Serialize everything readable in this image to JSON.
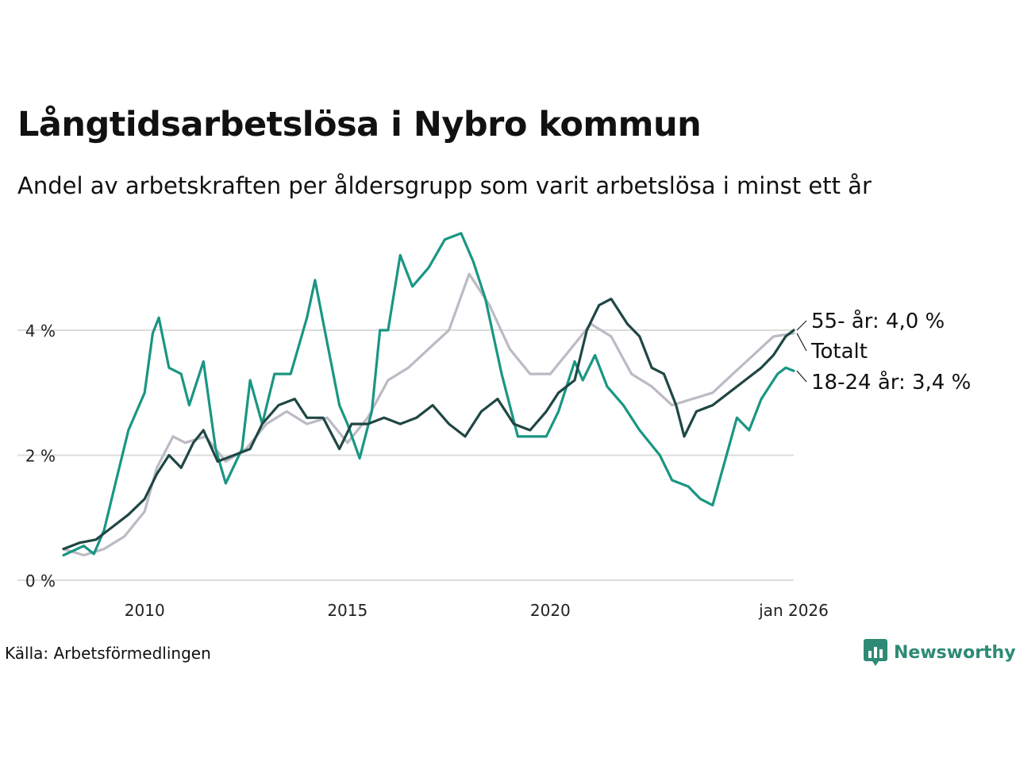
{
  "header": {
    "title": "Långtidsarbetslösa i Nybro kommun",
    "subtitle": "Andel av arbetskraften per åldersgrupp som varit arbetslösa i minst ett år"
  },
  "footer": {
    "source": "Källa: Arbetsförmedlingen",
    "brand": "Newsworthy"
  },
  "colors": {
    "youth": "#1a9683",
    "older": "#1f4744",
    "total": "#bcbac4",
    "grid": "#dcdcdc",
    "brand": "#2e8a74"
  },
  "chart_data": {
    "type": "line",
    "title": "Långtidsarbetslösa i Nybro kommun",
    "xlabel": "",
    "ylabel": "",
    "xlim": [
      2008.0,
      2026.0
    ],
    "ylim": [
      0,
      5.6
    ],
    "x_ticks": [
      {
        "value": 2010,
        "label": "2010"
      },
      {
        "value": 2015,
        "label": "2015"
      },
      {
        "value": 2020,
        "label": "2020"
      },
      {
        "value": 2026.0,
        "label": "jan 2026"
      }
    ],
    "y_ticks": [
      {
        "value": 0,
        "label": "0 %"
      },
      {
        "value": 2,
        "label": "2 %"
      },
      {
        "value": 4,
        "label": "4 %"
      }
    ],
    "grid": true,
    "series": [
      {
        "name": "Totalt",
        "label": "Totalt",
        "color": "#bcbac4",
        "points": [
          [
            2008.0,
            0.5
          ],
          [
            2008.5,
            0.4
          ],
          [
            2009.0,
            0.5
          ],
          [
            2009.5,
            0.7
          ],
          [
            2010.0,
            1.1
          ],
          [
            2010.3,
            1.8
          ],
          [
            2010.7,
            2.3
          ],
          [
            2011.0,
            2.2
          ],
          [
            2011.5,
            2.3
          ],
          [
            2012.0,
            1.9
          ],
          [
            2012.5,
            2.1
          ],
          [
            2013.0,
            2.5
          ],
          [
            2013.5,
            2.7
          ],
          [
            2014.0,
            2.5
          ],
          [
            2014.5,
            2.6
          ],
          [
            2015.0,
            2.2
          ],
          [
            2015.5,
            2.6
          ],
          [
            2016.0,
            3.2
          ],
          [
            2016.5,
            3.4
          ],
          [
            2017.0,
            3.7
          ],
          [
            2017.5,
            4.0
          ],
          [
            2018.0,
            4.9
          ],
          [
            2018.5,
            4.4
          ],
          [
            2019.0,
            3.7
          ],
          [
            2019.5,
            3.3
          ],
          [
            2020.0,
            3.3
          ],
          [
            2020.5,
            3.7
          ],
          [
            2021.0,
            4.1
          ],
          [
            2021.5,
            3.9
          ],
          [
            2022.0,
            3.3
          ],
          [
            2022.5,
            3.1
          ],
          [
            2023.0,
            2.8
          ],
          [
            2023.5,
            2.9
          ],
          [
            2024.0,
            3.0
          ],
          [
            2024.5,
            3.3
          ],
          [
            2025.0,
            3.6
          ],
          [
            2025.5,
            3.9
          ],
          [
            2026.0,
            3.95
          ]
        ]
      },
      {
        "name": "18-24 år",
        "label": "18-24 år: 3,4 %",
        "color": "#1a9683",
        "points": [
          [
            2008.0,
            0.4
          ],
          [
            2008.5,
            0.55
          ],
          [
            2008.75,
            0.42
          ],
          [
            2009.0,
            0.8
          ],
          [
            2009.3,
            1.6
          ],
          [
            2009.6,
            2.4
          ],
          [
            2010.0,
            3.0
          ],
          [
            2010.2,
            3.95
          ],
          [
            2010.35,
            4.2
          ],
          [
            2010.6,
            3.4
          ],
          [
            2010.9,
            3.3
          ],
          [
            2011.1,
            2.8
          ],
          [
            2011.45,
            3.5
          ],
          [
            2011.75,
            2.1
          ],
          [
            2012.0,
            1.55
          ],
          [
            2012.4,
            2.1
          ],
          [
            2012.6,
            3.2
          ],
          [
            2012.9,
            2.5
          ],
          [
            2013.2,
            3.3
          ],
          [
            2013.6,
            3.3
          ],
          [
            2014.0,
            4.2
          ],
          [
            2014.2,
            4.8
          ],
          [
            2014.5,
            3.8
          ],
          [
            2014.8,
            2.8
          ],
          [
            2015.0,
            2.5
          ],
          [
            2015.3,
            1.95
          ],
          [
            2015.6,
            2.7
          ],
          [
            2015.8,
            4.0
          ],
          [
            2016.0,
            4.0
          ],
          [
            2016.3,
            5.2
          ],
          [
            2016.6,
            4.7
          ],
          [
            2017.0,
            5.0
          ],
          [
            2017.4,
            5.45
          ],
          [
            2017.8,
            5.55
          ],
          [
            2018.1,
            5.1
          ],
          [
            2018.4,
            4.5
          ],
          [
            2018.8,
            3.3
          ],
          [
            2019.2,
            2.3
          ],
          [
            2019.5,
            2.3
          ],
          [
            2019.9,
            2.3
          ],
          [
            2020.2,
            2.7
          ],
          [
            2020.6,
            3.5
          ],
          [
            2020.8,
            3.2
          ],
          [
            2021.1,
            3.6
          ],
          [
            2021.4,
            3.1
          ],
          [
            2021.8,
            2.8
          ],
          [
            2022.2,
            2.4
          ],
          [
            2022.7,
            2.0
          ],
          [
            2023.0,
            1.6
          ],
          [
            2023.4,
            1.5
          ],
          [
            2023.7,
            1.3
          ],
          [
            2024.0,
            1.2
          ],
          [
            2024.3,
            1.9
          ],
          [
            2024.6,
            2.6
          ],
          [
            2024.9,
            2.4
          ],
          [
            2025.2,
            2.9
          ],
          [
            2025.6,
            3.3
          ],
          [
            2025.8,
            3.4
          ],
          [
            2026.0,
            3.35
          ]
        ]
      },
      {
        "name": "55- år",
        "label": "55- år: 4,0 %",
        "color": "#1f4744",
        "points": [
          [
            2008.0,
            0.5
          ],
          [
            2008.4,
            0.6
          ],
          [
            2008.8,
            0.65
          ],
          [
            2009.2,
            0.85
          ],
          [
            2009.6,
            1.05
          ],
          [
            2010.0,
            1.3
          ],
          [
            2010.3,
            1.7
          ],
          [
            2010.6,
            2.0
          ],
          [
            2010.9,
            1.8
          ],
          [
            2011.2,
            2.2
          ],
          [
            2011.45,
            2.4
          ],
          [
            2011.8,
            1.9
          ],
          [
            2012.2,
            2.0
          ],
          [
            2012.6,
            2.1
          ],
          [
            2012.9,
            2.5
          ],
          [
            2013.3,
            2.8
          ],
          [
            2013.7,
            2.9
          ],
          [
            2014.0,
            2.6
          ],
          [
            2014.4,
            2.6
          ],
          [
            2014.8,
            2.1
          ],
          [
            2015.1,
            2.5
          ],
          [
            2015.5,
            2.5
          ],
          [
            2015.9,
            2.6
          ],
          [
            2016.3,
            2.5
          ],
          [
            2016.7,
            2.6
          ],
          [
            2017.1,
            2.8
          ],
          [
            2017.5,
            2.5
          ],
          [
            2017.9,
            2.3
          ],
          [
            2018.3,
            2.7
          ],
          [
            2018.7,
            2.9
          ],
          [
            2019.1,
            2.5
          ],
          [
            2019.5,
            2.4
          ],
          [
            2019.9,
            2.7
          ],
          [
            2020.2,
            3.0
          ],
          [
            2020.6,
            3.2
          ],
          [
            2020.9,
            4.0
          ],
          [
            2021.2,
            4.4
          ],
          [
            2021.5,
            4.5
          ],
          [
            2021.9,
            4.1
          ],
          [
            2022.2,
            3.9
          ],
          [
            2022.5,
            3.4
          ],
          [
            2022.8,
            3.3
          ],
          [
            2023.1,
            2.8
          ],
          [
            2023.3,
            2.3
          ],
          [
            2023.6,
            2.7
          ],
          [
            2024.0,
            2.8
          ],
          [
            2024.4,
            3.0
          ],
          [
            2024.8,
            3.2
          ],
          [
            2025.2,
            3.4
          ],
          [
            2025.5,
            3.6
          ],
          [
            2025.8,
            3.9
          ],
          [
            2026.0,
            4.0
          ]
        ]
      }
    ],
    "annotations": [
      {
        "series": "55- år",
        "text": "55- år: 4,0 %"
      },
      {
        "series": "Totalt",
        "text": "Totalt"
      },
      {
        "series": "18-24 år",
        "text": "18-24 år: 3,4 %"
      }
    ]
  }
}
